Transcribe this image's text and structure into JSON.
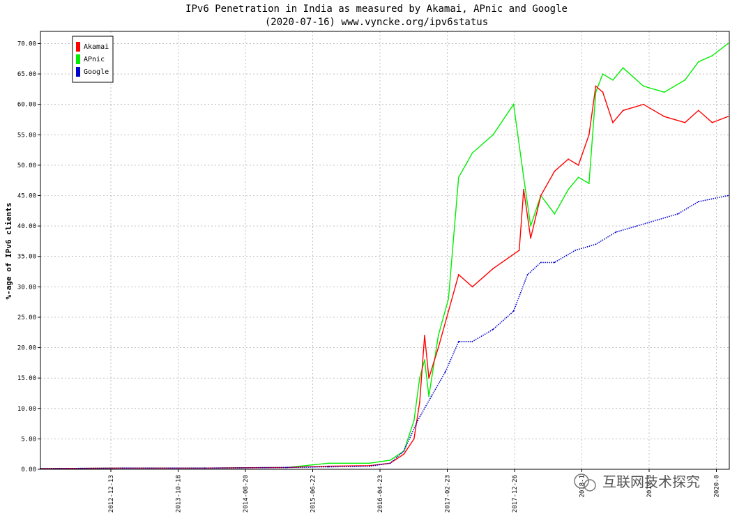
{
  "chart_data": {
    "type": "line",
    "title": "IPv6 Penetration in India as measured by Akamai, APnic and Google",
    "subtitle": "(2020-07-16) www.vyncke.org/ipv6status",
    "ylabel": "%-age of IPv6 clients",
    "xlabel": "",
    "ylim": [
      0,
      72
    ],
    "yticks": [
      "0.00",
      "5.00",
      "10.00",
      "15.00",
      "20.00",
      "25.00",
      "30.00",
      "35.00",
      "40.00",
      "45.00",
      "50.00",
      "55.00",
      "60.00",
      "65.00",
      "70.00"
    ],
    "xticks": [
      "2012-12-13",
      "2013-10-18",
      "2014-08-20",
      "2015-06-22",
      "2016-04-23",
      "2017-02-23",
      "2017-12-26",
      "2018-1",
      "2019-0",
      "2020-0"
    ],
    "grid": true,
    "legend_position": "top-left",
    "x_range": [
      "2012-03-01",
      "2020-07-16"
    ],
    "series": [
      {
        "name": "Akamai",
        "color": "#ff0000",
        "x": [
          "2012-03-01",
          "2013-03-01",
          "2014-03-01",
          "2015-03-01",
          "2015-09-01",
          "2016-03-01",
          "2016-06-01",
          "2016-08-01",
          "2016-09-15",
          "2016-10-10",
          "2016-11-01",
          "2016-11-20",
          "2017-01-01",
          "2017-04-01",
          "2017-06-01",
          "2017-09-01",
          "2017-12-26",
          "2018-01-15",
          "2018-02-15",
          "2018-04-01",
          "2018-06-01",
          "2018-08-01",
          "2018-09-15",
          "2018-11-01",
          "2018-12-01",
          "2019-01-01",
          "2019-02-15",
          "2019-04-01",
          "2019-07-01",
          "2019-10-01",
          "2020-01-01",
          "2020-03-01",
          "2020-05-01",
          "2020-07-10"
        ],
        "values": [
          0.1,
          0.2,
          0.2,
          0.3,
          0.5,
          0.6,
          1.0,
          2.5,
          5.0,
          11.0,
          22.0,
          15.0,
          20.0,
          32.0,
          30.0,
          33.0,
          36.0,
          46.0,
          38.0,
          45.0,
          49.0,
          51.0,
          50.0,
          55.0,
          63.0,
          62.0,
          57.0,
          59.0,
          60.0,
          58.0,
          57.0,
          59.0,
          57.0,
          58.0
        ]
      },
      {
        "name": "APnic",
        "color": "#00ee00",
        "x": [
          "2012-03-01",
          "2013-03-01",
          "2014-03-01",
          "2015-03-01",
          "2015-09-01",
          "2016-03-01",
          "2016-06-01",
          "2016-08-01",
          "2016-09-15",
          "2016-10-10",
          "2016-11-01",
          "2016-11-20",
          "2017-01-01",
          "2017-02-15",
          "2017-04-01",
          "2017-06-01",
          "2017-09-01",
          "2017-12-01",
          "2018-01-15",
          "2018-02-15",
          "2018-04-01",
          "2018-06-01",
          "2018-08-01",
          "2018-09-15",
          "2018-11-01",
          "2018-12-01",
          "2019-01-01",
          "2019-02-15",
          "2019-04-01",
          "2019-07-01",
          "2019-10-01",
          "2020-01-01",
          "2020-03-01",
          "2020-05-01",
          "2020-07-10"
        ],
        "values": [
          0.1,
          0.2,
          0.2,
          0.3,
          1.0,
          1.0,
          1.5,
          3.0,
          8.0,
          15.0,
          18.0,
          12.0,
          22.0,
          28.0,
          48.0,
          52.0,
          55.0,
          60.0,
          48.0,
          40.0,
          45.0,
          42.0,
          46.0,
          48.0,
          47.0,
          62.0,
          65.0,
          64.0,
          66.0,
          63.0,
          62.0,
          64.0,
          67.0,
          68.0,
          70.0
        ]
      },
      {
        "name": "Google",
        "color": "#0000cc",
        "x": [
          "2012-03-01",
          "2013-03-01",
          "2014-03-01",
          "2015-03-01",
          "2015-09-01",
          "2016-03-01",
          "2016-06-01",
          "2016-08-01",
          "2016-10-01",
          "2016-12-01",
          "2017-02-01",
          "2017-04-01",
          "2017-06-01",
          "2017-09-01",
          "2017-12-01",
          "2018-02-01",
          "2018-04-01",
          "2018-06-01",
          "2018-09-01",
          "2018-12-01",
          "2019-03-01",
          "2019-06-01",
          "2019-09-01",
          "2019-12-01",
          "2020-03-01",
          "2020-07-10"
        ],
        "values": [
          0.1,
          0.2,
          0.2,
          0.3,
          0.4,
          0.5,
          1.0,
          3.0,
          8.0,
          12.0,
          16.0,
          21.0,
          21.0,
          23.0,
          26.0,
          32.0,
          34.0,
          34.0,
          36.0,
          37.0,
          39.0,
          40.0,
          41.0,
          42.0,
          44.0,
          45.0
        ]
      }
    ]
  },
  "watermark": "互联网技术探究"
}
